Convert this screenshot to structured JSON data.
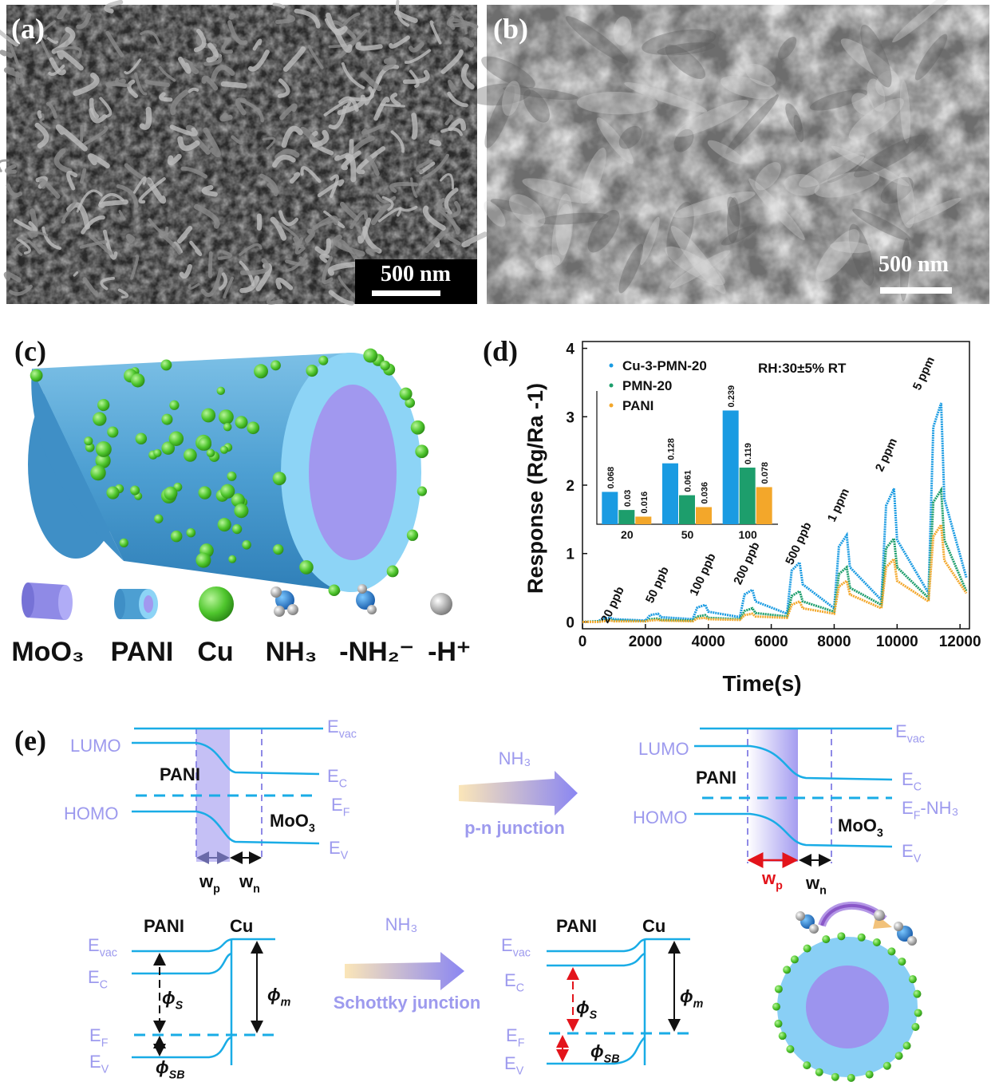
{
  "panel_labels": [
    "(a)",
    "(b)",
    "(c)",
    "(d)",
    "(e)"
  ],
  "scale_bars": [
    "500 nm",
    "500 nm"
  ],
  "legend_c": [
    "MoO₃",
    "PANI",
    "Cu",
    "NH₃",
    "-NH₂⁻",
    "-H⁺"
  ],
  "chart_data": [
    {
      "type": "line",
      "x_label": "Time(s)",
      "y_label": "Response (Rg/Ra -1)",
      "note": "RH:30±5%   RT",
      "legend": "top-left",
      "annotations": [
        "20 ppb",
        "50 ppb",
        "100 ppb",
        "200 ppb",
        "500 ppb",
        "1 ppm",
        "2 ppm",
        "5 ppm"
      ],
      "x": [
        0,
        500,
        650,
        900,
        1000,
        2000,
        2150,
        2400,
        2500,
        3500,
        3650,
        3900,
        4000,
        5000,
        5150,
        5400,
        5500,
        6500,
        6650,
        6900,
        7000,
        8000,
        8150,
        8400,
        8500,
        9500,
        9650,
        9900,
        10000,
        11000,
        11150,
        11400,
        11500,
        12200
      ],
      "series": [
        {
          "name": "Cu-3-PMN-20",
          "color": "#1a9be2",
          "values": [
            0,
            0.01,
            0.05,
            0.06,
            0.04,
            0.02,
            0.1,
            0.12,
            0.07,
            0.04,
            0.21,
            0.25,
            0.15,
            0.07,
            0.4,
            0.47,
            0.3,
            0.12,
            0.75,
            0.87,
            0.55,
            0.2,
            1.1,
            1.27,
            0.8,
            0.32,
            1.7,
            1.95,
            1.2,
            0.42,
            2.85,
            3.2,
            1.8,
            0.65
          ]
        },
        {
          "name": "PMN-20",
          "color": "#1d9e6c",
          "values": [
            0,
            0.01,
            0.02,
            0.03,
            0.02,
            0.01,
            0.04,
            0.05,
            0.03,
            0.02,
            0.08,
            0.1,
            0.06,
            0.04,
            0.16,
            0.2,
            0.13,
            0.08,
            0.38,
            0.45,
            0.3,
            0.15,
            0.7,
            0.8,
            0.5,
            0.25,
            1.08,
            1.22,
            0.8,
            0.35,
            1.75,
            1.93,
            1.2,
            0.45
          ]
        },
        {
          "name": "PANI",
          "color": "#f3a72a",
          "values": [
            0,
            0,
            0.01,
            0.02,
            0.01,
            0.01,
            0.02,
            0.03,
            0.02,
            0.01,
            0.05,
            0.06,
            0.04,
            0.03,
            0.1,
            0.12,
            0.08,
            0.06,
            0.25,
            0.3,
            0.2,
            0.12,
            0.52,
            0.6,
            0.4,
            0.2,
            0.8,
            0.92,
            0.6,
            0.3,
            1.25,
            1.42,
            0.9,
            0.42
          ]
        }
      ],
      "xlim": [
        0,
        12300
      ],
      "ylim": [
        -0.1,
        4.1
      ],
      "xticks": [
        0,
        2000,
        4000,
        6000,
        8000,
        10000,
        12000
      ],
      "yticks": [
        0,
        1,
        2,
        3,
        4
      ]
    },
    {
      "type": "bar",
      "categories": [
        "20",
        "50",
        "100"
      ],
      "series": [
        {
          "color": "#1a9be2",
          "values": [
            0.068,
            0.128,
            0.239
          ]
        },
        {
          "color": "#1d9e6c",
          "values": [
            0.03,
            0.061,
            0.119
          ]
        },
        {
          "color": "#f3a72a",
          "values": [
            0.016,
            0.036,
            0.078
          ]
        }
      ],
      "ylim": [
        0,
        0.28
      ]
    }
  ],
  "e": {
    "pn_before": [
      {
        "text": "E",
        "sub": "vac"
      },
      {
        "text": "LUMO"
      },
      {
        "text": "PANI"
      },
      {
        "text": "E",
        "sub": "C"
      },
      {
        "text": "E",
        "sub": "F"
      },
      {
        "text": "HOMO"
      },
      {
        "text": "MoO",
        "sub": "3"
      },
      {
        "text": "E",
        "sub": "V"
      },
      {
        "text": "w",
        "sub": "p"
      },
      {
        "text": "w",
        "sub": "n"
      }
    ],
    "pn_arrow": {
      "gas": "NH₃",
      "caption": "p-n junction"
    },
    "pn_after": [
      {
        "text": "E",
        "sub": "vac"
      },
      {
        "text": "LUMO"
      },
      {
        "text": "PANI"
      },
      {
        "text": "E",
        "sub": "C"
      },
      {
        "text": "E",
        "sub": "F",
        "after": "-NH₃"
      },
      {
        "text": "HOMO"
      },
      {
        "text": "MoO",
        "sub": "3"
      },
      {
        "text": "E",
        "sub": "V"
      },
      {
        "text": "w",
        "sub": "p"
      },
      {
        "text": "w",
        "sub": "n"
      }
    ],
    "schottky_before": [
      {
        "text": "PANI"
      },
      {
        "text": "Cu"
      },
      {
        "text": "E",
        "sub": "vac"
      },
      {
        "text": "E",
        "sub": "C"
      },
      {
        "text": "ϕ",
        "sub": "S"
      },
      {
        "text": "ϕ",
        "sub": "m"
      },
      {
        "text": "E",
        "sub": "F"
      },
      {
        "text": "E",
        "sub": "V"
      },
      {
        "text": "ϕ",
        "sub": "SB"
      }
    ],
    "schottky_arrow": {
      "gas": "NH₃",
      "caption": "Schottky junction"
    },
    "schottky_after": [
      {
        "text": "PANI"
      },
      {
        "text": "Cu"
      },
      {
        "text": "E",
        "sub": "vac"
      },
      {
        "text": "E",
        "sub": "C"
      },
      {
        "text": "ϕ",
        "sub": "S"
      },
      {
        "text": "ϕ",
        "sub": "m"
      },
      {
        "text": "E",
        "sub": "F"
      },
      {
        "text": "E",
        "sub": "V"
      },
      {
        "text": "ϕ",
        "sub": "SB"
      }
    ]
  }
}
